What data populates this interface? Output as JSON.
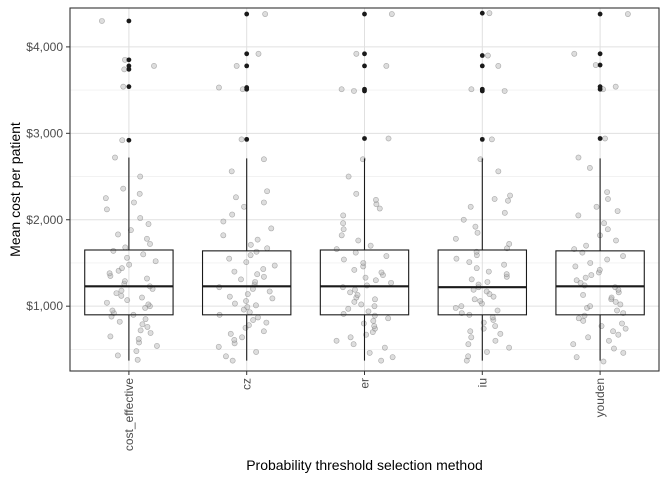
{
  "chart_data": {
    "type": "boxplot",
    "xlabel": "Probability threshold selection method",
    "ylabel": "Mean cost per patient",
    "categories": [
      "cost_effective",
      "cz",
      "er",
      "iu",
      "youden"
    ],
    "ylim": [
      250,
      4450
    ],
    "yticks": [
      1000,
      2000,
      3000,
      4000
    ],
    "ytick_labels": [
      "$1,000",
      "$2,000",
      "$3,000",
      "$4,000"
    ],
    "grid": true,
    "boxes": [
      {
        "category": "cost_effective",
        "whisker_low": 370,
        "q1": 900,
        "median": 1230,
        "q3": 1650,
        "whisker_high": 2720,
        "outliers": [
          2920,
          3540,
          3740,
          3780,
          3850,
          4300
        ]
      },
      {
        "category": "cz",
        "whisker_low": 370,
        "q1": 900,
        "median": 1230,
        "q3": 1640,
        "whisker_high": 2710,
        "outliers": [
          2930,
          3510,
          3530,
          3780,
          3920,
          4380
        ]
      },
      {
        "category": "er",
        "whisker_low": 370,
        "q1": 900,
        "median": 1230,
        "q3": 1650,
        "whisker_high": 2710,
        "outliers": [
          2940,
          3490,
          3510,
          3780,
          3920,
          4380
        ]
      },
      {
        "category": "iu",
        "whisker_low": 370,
        "q1": 900,
        "median": 1220,
        "q3": 1650,
        "whisker_high": 2710,
        "outliers": [
          2930,
          3490,
          3510,
          3780,
          3900,
          4390
        ]
      },
      {
        "category": "youden",
        "whisker_low": 370,
        "q1": 900,
        "median": 1230,
        "q3": 1640,
        "whisker_high": 2710,
        "outliers": [
          2940,
          3510,
          3540,
          3790,
          3920,
          4380
        ]
      }
    ],
    "jitter_points": [
      {
        "category": "cost_effective",
        "values": [
          380,
          430,
          480,
          540,
          580,
          620,
          650,
          690,
          720,
          760,
          790,
          820,
          850,
          880,
          900,
          920,
          950,
          980,
          1000,
          1020,
          1040,
          1070,
          1100,
          1120,
          1150,
          1180,
          1200,
          1230,
          1260,
          1290,
          1320,
          1350,
          1380,
          1410,
          1440,
          1480,
          1520,
          1560,
          1600,
          1640,
          1680,
          1720,
          1780,
          1830,
          1880,
          1950,
          2020,
          2120,
          2200,
          2250,
          2300,
          2360,
          2500,
          2720,
          2920,
          3540,
          3740,
          3780,
          3850,
          4300
        ]
      },
      {
        "category": "cz",
        "values": [
          370,
          420,
          470,
          530,
          570,
          610,
          640,
          680,
          710,
          750,
          780,
          810,
          840,
          870,
          900,
          930,
          960,
          990,
          1010,
          1030,
          1060,
          1090,
          1110,
          1140,
          1170,
          1200,
          1220,
          1250,
          1280,
          1310,
          1340,
          1370,
          1400,
          1430,
          1470,
          1510,
          1550,
          1590,
          1630,
          1670,
          1710,
          1770,
          1820,
          1900,
          1980,
          2060,
          2150,
          2200,
          2260,
          2330,
          2560,
          2700,
          2930,
          3510,
          3530,
          3780,
          3920,
          4380
        ]
      },
      {
        "category": "er",
        "values": [
          370,
          410,
          460,
          520,
          560,
          600,
          640,
          670,
          700,
          740,
          770,
          800,
          830,
          860,
          890,
          910,
          940,
          970,
          1000,
          1020,
          1050,
          1080,
          1100,
          1130,
          1160,
          1190,
          1220,
          1240,
          1270,
          1300,
          1330,
          1360,
          1390,
          1420,
          1460,
          1500,
          1540,
          1580,
          1620,
          1660,
          1700,
          1760,
          1820,
          1890,
          1960,
          2050,
          2130,
          2180,
          2230,
          2300,
          2500,
          2700,
          2940,
          3490,
          3510,
          3780,
          3920,
          4380
        ]
      },
      {
        "category": "iu",
        "values": [
          370,
          420,
          470,
          520,
          560,
          600,
          640,
          680,
          710,
          740,
          770,
          810,
          840,
          870,
          900,
          920,
          950,
          980,
          1000,
          1030,
          1060,
          1080,
          1110,
          1140,
          1170,
          1190,
          1220,
          1250,
          1280,
          1310,
          1340,
          1370,
          1400,
          1440,
          1480,
          1510,
          1550,
          1590,
          1630,
          1670,
          1720,
          1780,
          1850,
          1920,
          2000,
          2080,
          2150,
          2220,
          2240,
          2280,
          2560,
          2700,
          2930,
          3490,
          3510,
          3780,
          3900,
          4390
        ]
      },
      {
        "category": "youden",
        "values": [
          360,
          410,
          460,
          510,
          560,
          600,
          640,
          670,
          710,
          740,
          770,
          800,
          830,
          860,
          890,
          920,
          950,
          980,
          1000,
          1020,
          1050,
          1080,
          1100,
          1130,
          1160,
          1190,
          1220,
          1240,
          1270,
          1300,
          1330,
          1360,
          1390,
          1420,
          1460,
          1500,
          1540,
          1580,
          1620,
          1660,
          1700,
          1760,
          1820,
          1890,
          1960,
          2050,
          2100,
          2150,
          2240,
          2320,
          2600,
          2720,
          2940,
          3510,
          3540,
          3790,
          3920,
          4380
        ]
      }
    ]
  }
}
